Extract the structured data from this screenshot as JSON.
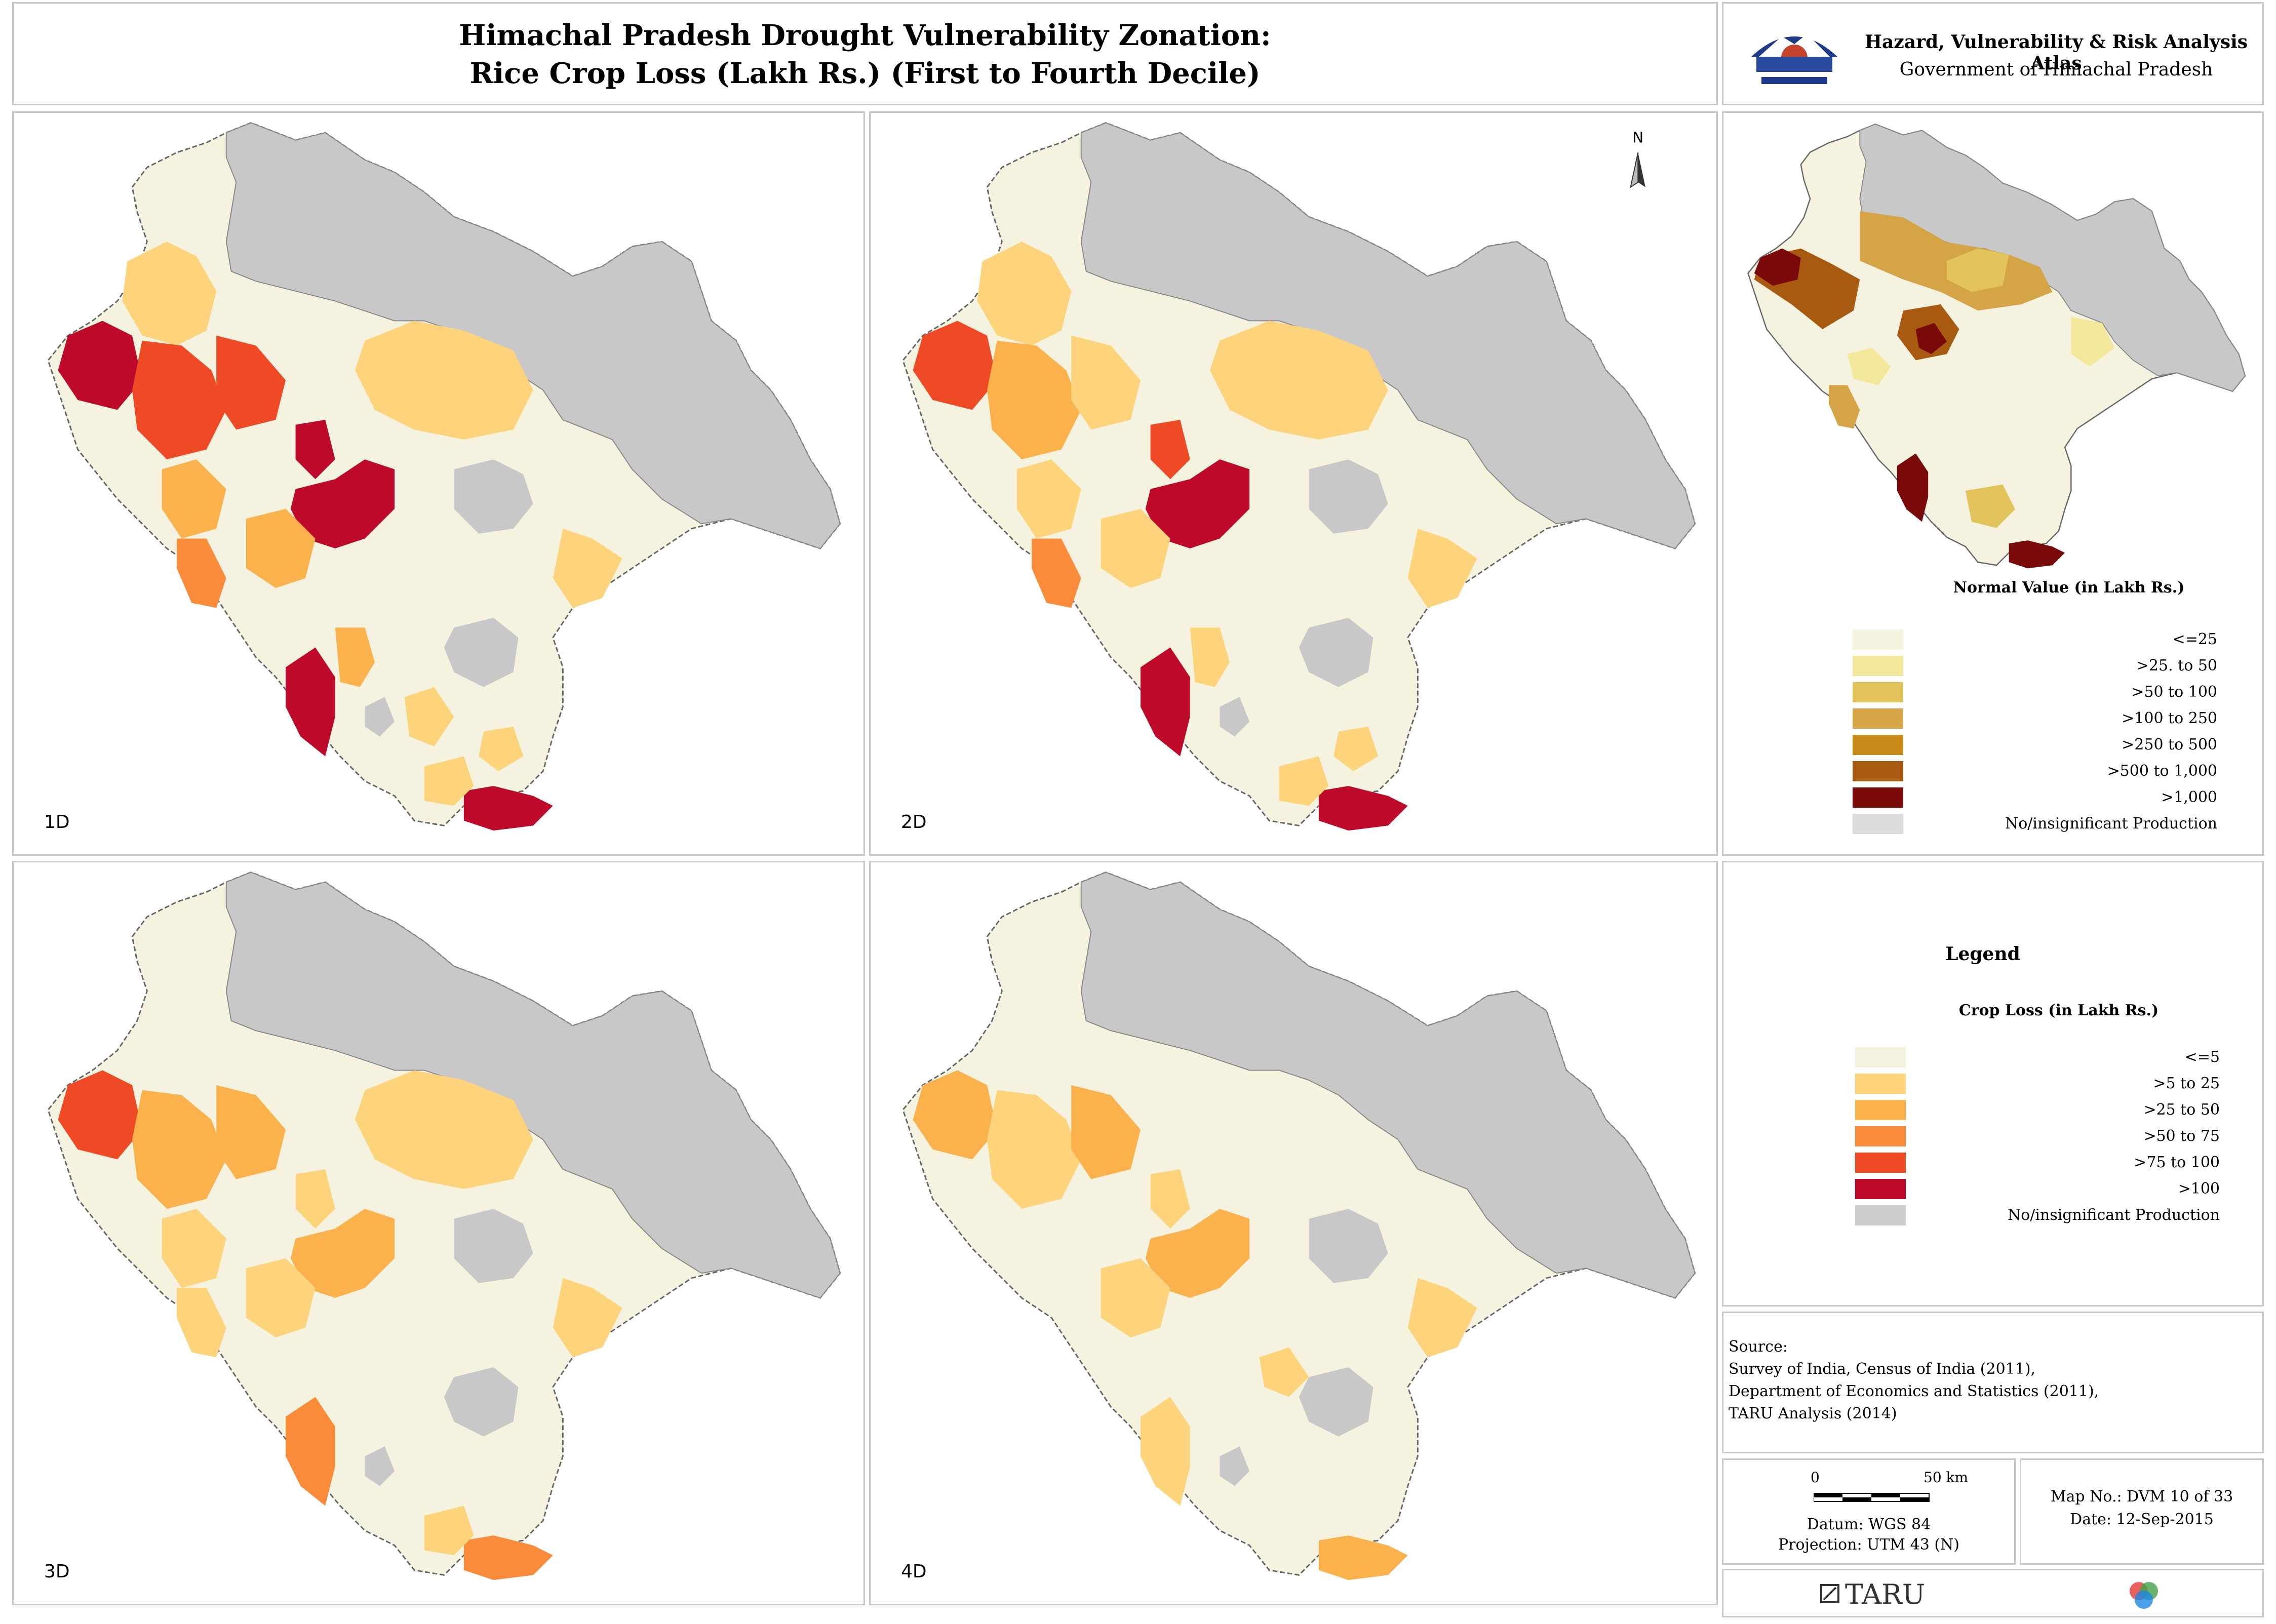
{
  "title": {
    "line1": "Himachal Pradesh Drought Vulnerability Zonation:",
    "line2": "Rice Crop Loss (Lakh Rs.) (First to Fourth Decile)"
  },
  "atlas": {
    "name": "Hazard, Vulnerability & Risk Analysis Atlas",
    "government": "Government of Himachal Pradesh",
    "emblem_icon": "himachal-emblem-icon"
  },
  "maps": [
    {
      "label": "1D"
    },
    {
      "label": "2D"
    },
    {
      "label": "3D"
    },
    {
      "label": "4D"
    }
  ],
  "north_arrow": {
    "label": "N"
  },
  "normal_legend": {
    "title": "Normal Value (in Lakh Rs.)",
    "items": [
      {
        "label": "<=25",
        "color": "#f5f3e0"
      },
      {
        "label": ">25. to 50",
        "color": "#f2e79a"
      },
      {
        "label": ">50 to 100",
        "color": "#e3c35c"
      },
      {
        "label": ">100 to 250",
        "color": "#d4a447"
      },
      {
        "label": ">250 to 500",
        "color": "#c98a1a"
      },
      {
        "label": ">500 to 1,000",
        "color": "#a85a10"
      },
      {
        "label": ">1,000",
        "color": "#7a0a0a"
      },
      {
        "label": "No/insignificant Production",
        "color": "#dcdcdc"
      }
    ]
  },
  "loss_legend": {
    "heading": "Legend",
    "title": "Crop Loss (in Lakh Rs.)",
    "items": [
      {
        "label": "<=5",
        "color": "#f5f3e0"
      },
      {
        "label": ">5 to 25",
        "color": "#fdd47c"
      },
      {
        "label": ">25 to 50",
        "color": "#fbb24c"
      },
      {
        "label": ">50 to 75",
        "color": "#f98b3b"
      },
      {
        "label": ">75 to 100",
        "color": "#ee4a26"
      },
      {
        "label": ">100",
        "color": "#bd0a2a"
      },
      {
        "label": "No/insignificant Production",
        "color": "#cccccc"
      }
    ]
  },
  "source": {
    "heading": "Source:",
    "lines": [
      "Survey of India, Census of India (2011),",
      "Department of Economics and Statistics (2011),",
      "TARU Analysis (2014)"
    ]
  },
  "scale": {
    "start": "0",
    "end": "50 km",
    "datum": "Datum: WGS 84",
    "projection": "Projection: UTM 43 (N)"
  },
  "map_info": {
    "number": "Map No.: DVM 10 of 33",
    "date": "Date: 12-Sep-2015"
  },
  "footer": {
    "brand": "TARU"
  },
  "colors": {
    "none": "#c8c8c8",
    "lowest": "#f5f3e0",
    "low": "#fdd47c",
    "mid": "#fbb24c",
    "high": "#f98b3b",
    "higher": "#ee4a26",
    "highest": "#bd0a2a"
  }
}
